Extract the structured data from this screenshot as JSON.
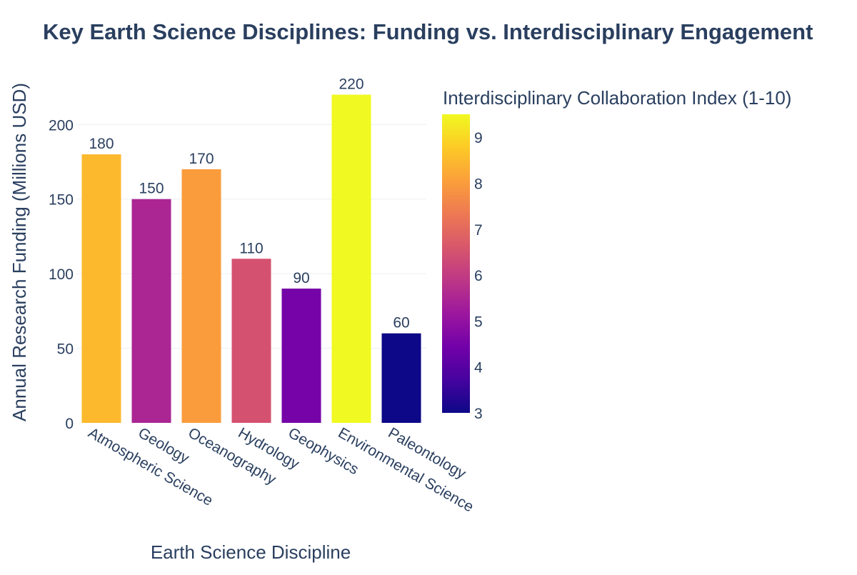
{
  "chart_data": {
    "type": "bar",
    "title": "Key Earth Science Disciplines: Funding vs. Interdisciplinary Engagement",
    "xlabel": "Earth Science Discipline",
    "ylabel": "Annual Research Funding (Millions USD)",
    "categories": [
      "Atmospheric Science",
      "Geology",
      "Oceanography",
      "Hydrology",
      "Geophysics",
      "Environmental Science",
      "Paleontology"
    ],
    "values": [
      180,
      150,
      170,
      110,
      90,
      220,
      60
    ],
    "color_values": [
      8.5,
      5.5,
      8.0,
      6.5,
      4.5,
      9.5,
      3.0
    ],
    "ylim": [
      0,
      226
    ],
    "yticks": [
      0,
      50,
      100,
      150,
      200
    ],
    "grid": true,
    "colorbar": {
      "title": "Interdisciplinary Collaboration Index (1-10)",
      "range": [
        3,
        9.5
      ],
      "ticks": [
        3,
        4,
        5,
        6,
        7,
        8,
        9
      ],
      "colorscale": [
        "#0d0887",
        "#46039f",
        "#7201a8",
        "#9c179e",
        "#bd3786",
        "#d8576b",
        "#ed7953",
        "#fb9f3a",
        "#fdca26",
        "#f0f921"
      ]
    }
  }
}
